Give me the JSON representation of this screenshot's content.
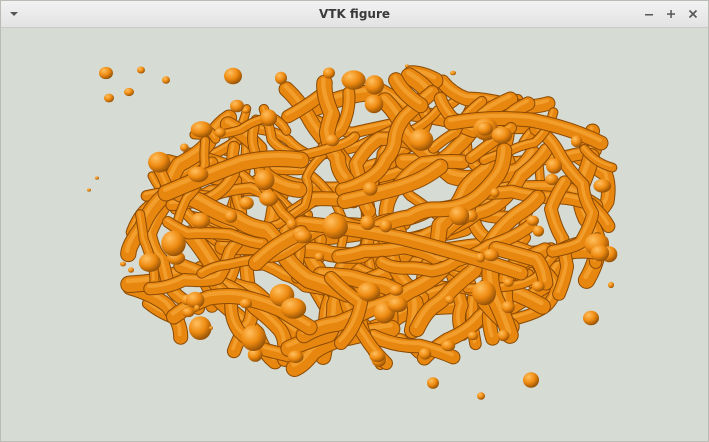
{
  "window": {
    "title": "VTK figure",
    "menu_icon": "chevron-down-icon",
    "minimize_icon": "minimize-icon",
    "maximize_icon": "maximize-icon",
    "close_icon": "close-icon"
  },
  "scene": {
    "description_kind": "3d-isosurface-render",
    "background_color": "#d6dbd3",
    "surface_color": "#e8870f",
    "surface_highlight_color": "#f7a83a",
    "surface_shadow_color": "#8a4a05"
  }
}
